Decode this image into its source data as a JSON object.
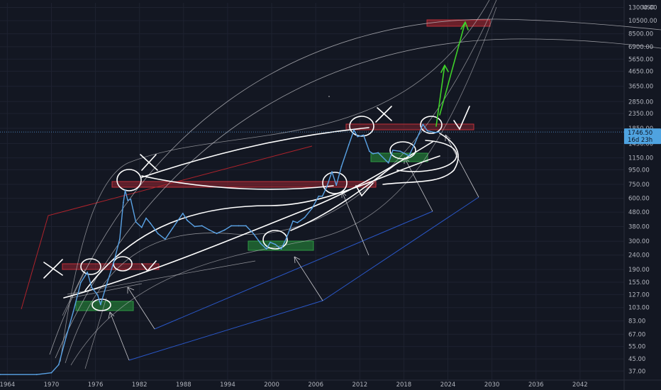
{
  "chart_data": {
    "type": "line",
    "scale": "log",
    "x_range": [
      1963,
      2048
    ],
    "y_range": [
      32,
      14000
    ],
    "currency_unit": "USD",
    "y_ticks": [
      "13000.00",
      "10500.00",
      "8500.00",
      "6900.00",
      "5650.00",
      "4650.00",
      "3650.00",
      "2850.00",
      "2350.00",
      "1850.00",
      "1450.00",
      "1150.00",
      "950.00",
      "750.00",
      "600.00",
      "480.00",
      "380.00",
      "300.00",
      "240.00",
      "190.00",
      "155.00",
      "127.00",
      "103.00",
      "83.00",
      "67.00",
      "55.00",
      "45.00",
      "37.00"
    ],
    "x_ticks": [
      "1964",
      "1970",
      "1976",
      "1982",
      "1988",
      "1994",
      "2000",
      "2006",
      "2012",
      "2018",
      "2024",
      "2030",
      "2036",
      "2042"
    ],
    "last_price": "1746.50",
    "countdown": "16d 23h",
    "series": [
      {
        "x": [
          1963,
          1968,
          1970,
          1971,
          1972,
          1973,
          1974,
          1974.9,
          1975.5,
          1976.3,
          1976.7,
          1977.5,
          1978.5,
          1979.3,
          1979.8,
          1980.05,
          1980.4,
          1980.8,
          1981.5,
          1982.3,
          1982.9,
          1983.5,
          1984.5,
          1985.5,
          1986.5,
          1987.9,
          1988.5,
          1989.5,
          1990.5,
          1991.5,
          1992.5,
          1993.6,
          1994.5,
          1995.5,
          1996.5,
          1997.5,
          1998.5,
          1999.3,
          1999.8,
          2000.5,
          2001.3,
          2002,
          2002.9,
          2003.5,
          2004.5,
          2005.5,
          2006.4,
          2006.9,
          2007.5,
          2008.2,
          2008.8,
          2009.5,
          2010.5,
          2011.2,
          2011.7,
          2012.5,
          2013.3,
          2013.8,
          2014.5,
          2015.9,
          2016.5,
          2017.5,
          2018.7,
          2019.5,
          2020.6,
          2021.2,
          2022.3,
          2022.8
        ],
        "y": [
          35,
          35,
          36,
          41,
          64,
          97,
          154,
          182,
          142,
          126,
          108,
          148,
          215,
          310,
          560,
          680,
          580,
          590,
          410,
          375,
          435,
          400,
          340,
          310,
          370,
          470,
          420,
          380,
          385,
          360,
          340,
          360,
          385,
          385,
          385,
          340,
          290,
          265,
          295,
          285,
          265,
          315,
          415,
          405,
          440,
          510,
          620,
          620,
          720,
          920,
          740,
          1000,
          1420,
          1800,
          1620,
          1660,
          1280,
          1230,
          1250,
          1060,
          1300,
          1280,
          1190,
          1450,
          1975,
          1780,
          1730,
          1746.5
        ]
      }
    ]
  }
}
